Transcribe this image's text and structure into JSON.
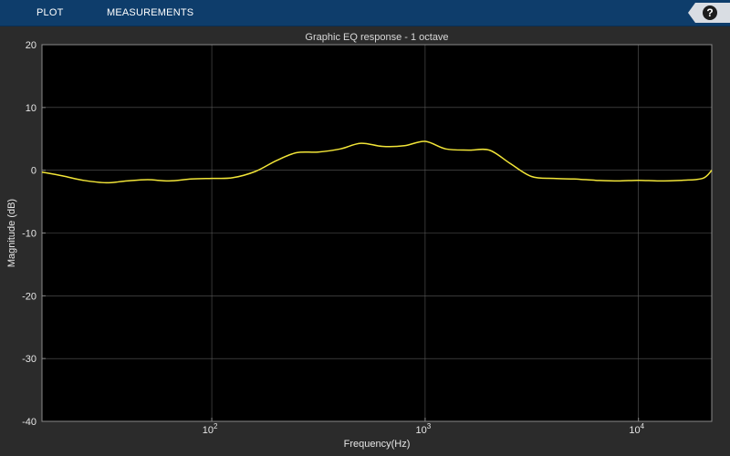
{
  "toolstrip": {
    "tabs": [
      {
        "label": "PLOT"
      },
      {
        "label": "MEASUREMENTS"
      }
    ],
    "help_label": "?",
    "help_icon": "help-icon"
  },
  "colors": {
    "toolstrip_bg": "#0e3d6b",
    "plot_bg": "#000000",
    "figure_bg": "#2b2b2b",
    "grid": "#5a5a5a",
    "trace": "#f2e538"
  },
  "chart_data": {
    "type": "line",
    "title": "Graphic EQ response - 1 octave",
    "xlabel": "Frequency(Hz)",
    "ylabel": "Magnitude (dB)",
    "xscale": "log",
    "xlim": [
      16,
      22050
    ],
    "ylim": [
      -40,
      20
    ],
    "yticks": [
      -40,
      -30,
      -20,
      -10,
      0,
      10,
      20
    ],
    "yticklabels": [
      "-40",
      "-30",
      "-20",
      "-10",
      "0",
      "10",
      "20"
    ],
    "xticks": [
      100,
      1000,
      10000
    ],
    "xtick_base": "10",
    "xtick_exponents": [
      "2",
      "3",
      "4"
    ],
    "grid": true,
    "series": [
      {
        "x": [
          16,
          20,
          25,
          32,
          40,
          50,
          63,
          80,
          100,
          125,
          160,
          200,
          250,
          315,
          400,
          500,
          630,
          800,
          1000,
          1250,
          1600,
          2000,
          2500,
          3150,
          4000,
          5000,
          6300,
          8000,
          10000,
          12500,
          16000,
          20000,
          22050
        ],
        "y": [
          -0.3,
          -0.9,
          -1.6,
          -2.0,
          -1.7,
          -1.5,
          -1.7,
          -1.4,
          -1.3,
          -1.2,
          -0.2,
          1.5,
          2.8,
          2.9,
          3.4,
          4.3,
          3.8,
          3.9,
          4.6,
          3.4,
          3.2,
          3.2,
          1.1,
          -1.0,
          -1.3,
          -1.4,
          -1.6,
          -1.7,
          -1.6,
          -1.7,
          -1.6,
          -1.3,
          0.0
        ]
      }
    ]
  }
}
